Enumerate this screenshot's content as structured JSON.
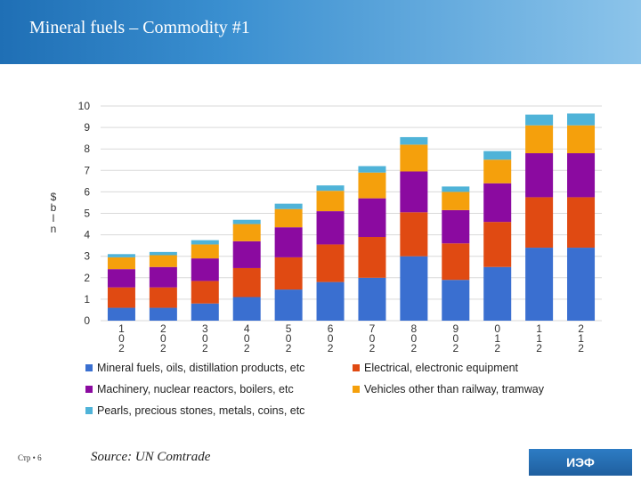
{
  "header": {
    "title": "Mineral fuels – Commodity #1"
  },
  "footer": {
    "page": "Стр • 6",
    "source": "Source: UN Comtrade",
    "logo": "ИЭФ"
  },
  "chart_data": {
    "type": "bar",
    "stacked": true,
    "ylabel": "$ bln",
    "ylim": [
      0,
      10
    ],
    "yticks": [
      0,
      1,
      2,
      3,
      4,
      5,
      6,
      7,
      8,
      9,
      10
    ],
    "grid": true,
    "legend_position": "bottom",
    "categories": [
      "2001",
      "2002",
      "2003",
      "2004",
      "2005",
      "2006",
      "2007",
      "2008",
      "2009",
      "2010",
      "2011",
      "2012"
    ],
    "category_labels": [
      [
        "1",
        "0",
        "2"
      ],
      [
        "2",
        "0",
        "2"
      ],
      [
        "3",
        "0",
        "2"
      ],
      [
        "4",
        "0",
        "2"
      ],
      [
        "5",
        "0",
        "2"
      ],
      [
        "6",
        "0",
        "2"
      ],
      [
        "7",
        "0",
        "2"
      ],
      [
        "8",
        "0",
        "2"
      ],
      [
        "9",
        "0",
        "2"
      ],
      [
        "0",
        "1",
        "2"
      ],
      [
        "1",
        "1",
        "2"
      ],
      [
        "2",
        "1",
        "2"
      ]
    ],
    "series": [
      {
        "name": "Mineral fuels, oils, distillation products, etc",
        "color": "#3a6fd0",
        "values": [
          0.6,
          0.6,
          0.8,
          1.1,
          1.45,
          1.8,
          2.0,
          3.0,
          1.9,
          2.5,
          3.4,
          3.4
        ]
      },
      {
        "name": "Electrical, electronic equipment",
        "color": "#e04a12",
        "values": [
          0.95,
          0.95,
          1.05,
          1.35,
          1.5,
          1.75,
          1.9,
          2.05,
          1.7,
          2.1,
          2.35,
          2.35
        ]
      },
      {
        "name": "Machinery, nuclear reactors, boilers, etc",
        "color": "#8b0aa0",
        "values": [
          0.85,
          0.95,
          1.05,
          1.25,
          1.4,
          1.55,
          1.8,
          1.9,
          1.55,
          1.8,
          2.05,
          2.05
        ]
      },
      {
        "name": "Vehicles other than railway, tramway",
        "color": "#f5a00c",
        "values": [
          0.55,
          0.55,
          0.65,
          0.8,
          0.85,
          0.95,
          1.2,
          1.25,
          0.85,
          1.1,
          1.3,
          1.3
        ]
      },
      {
        "name": "Pearls, precious stones, metals, coins, etc",
        "color": "#4fb3d8",
        "values": [
          0.15,
          0.15,
          0.2,
          0.2,
          0.25,
          0.25,
          0.3,
          0.35,
          0.25,
          0.4,
          0.5,
          0.55
        ]
      }
    ]
  }
}
